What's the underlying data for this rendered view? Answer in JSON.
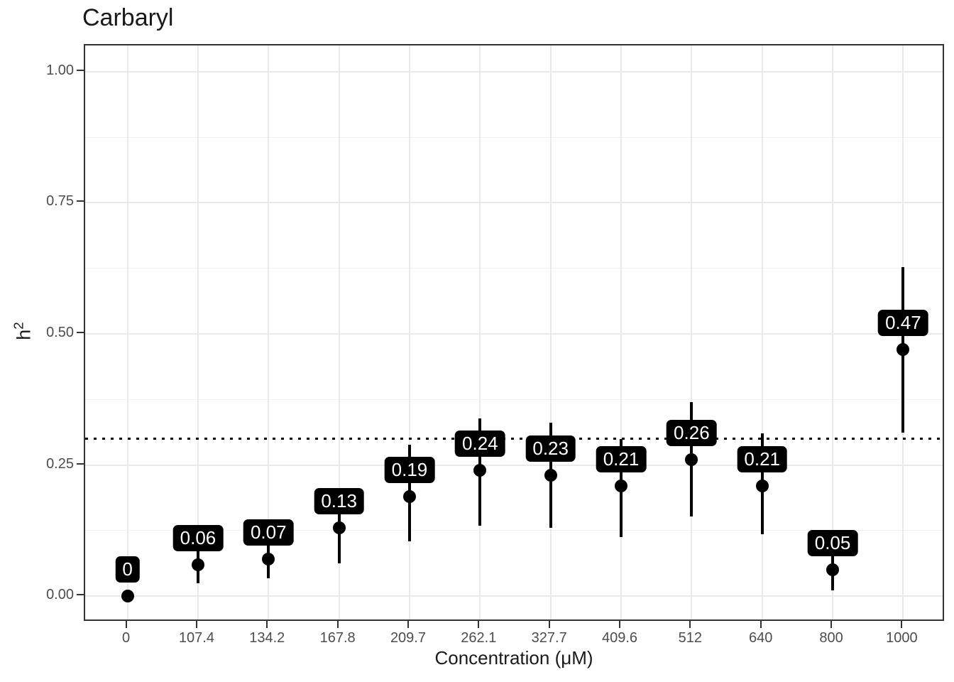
{
  "title": "Carbaryl",
  "axes": {
    "x_title": "Concentration (μM)",
    "y_title_base": "h",
    "y_title_sup": "2"
  },
  "colors": {
    "point": "#000000",
    "error_bar": "#000000",
    "label_bg": "#000000",
    "label_text": "#ffffff",
    "grid_major": "#eaeaea",
    "grid_minor": "#f1f1f1",
    "panel_border": "#333333",
    "axis_text": "#4d4d4d",
    "title_text": "#1a1a1a",
    "reference_line": "#000000"
  },
  "chart_data": {
    "type": "scatter",
    "title": "Carbaryl",
    "xlabel": "Concentration (μM)",
    "ylabel": "h²",
    "categories": [
      "0",
      "107.4",
      "134.2",
      "167.8",
      "209.7",
      "262.1",
      "327.7",
      "409.6",
      "512",
      "640",
      "800",
      "1000"
    ],
    "values": [
      0,
      0.06,
      0.07,
      0.13,
      0.19,
      0.24,
      0.23,
      0.21,
      0.26,
      0.21,
      0.05,
      0.47
    ],
    "point_labels": [
      "0",
      "0.06",
      "0.07",
      "0.13",
      "0.19",
      "0.24",
      "0.23",
      "0.21",
      "0.26",
      "0.21",
      "0.05",
      "0.47"
    ],
    "error_low": [
      0,
      0.025,
      0.034,
      0.062,
      0.105,
      0.134,
      0.13,
      0.113,
      0.152,
      0.118,
      0.011,
      0.312
    ],
    "error_high": [
      0,
      0.1,
      0.12,
      0.19,
      0.288,
      0.339,
      0.33,
      0.3,
      0.37,
      0.31,
      0.09,
      0.628
    ],
    "reference_line_y": 0.3,
    "reference_line_style": "dotted",
    "ylim": [
      -0.05,
      1.05
    ],
    "y_major_ticks": [
      0,
      0.25,
      0.5,
      0.75,
      1
    ],
    "y_tick_labels": [
      "0.00",
      "0.25",
      "0.50",
      "0.75",
      "1.00"
    ],
    "y_minor_gridlines": [
      0.125,
      0.375,
      0.625,
      0.875
    ],
    "grid": true,
    "legend": false
  }
}
